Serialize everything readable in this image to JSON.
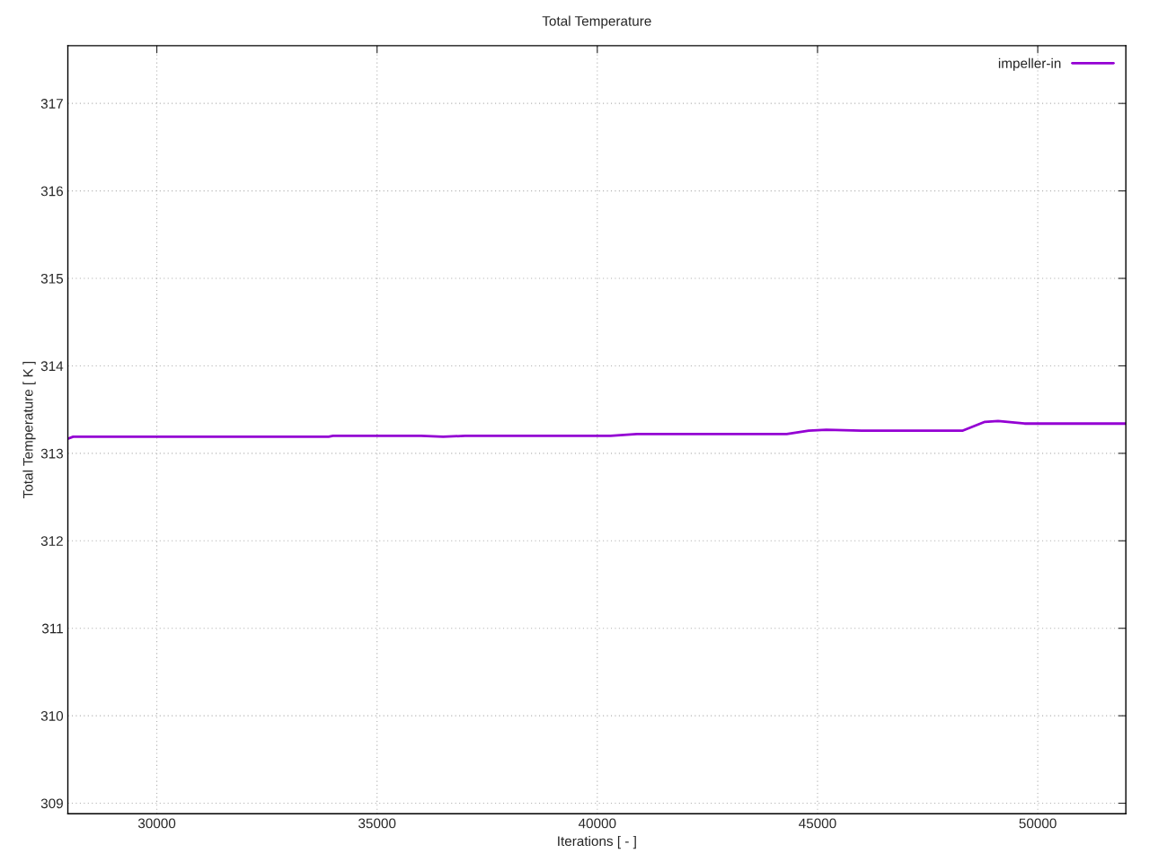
{
  "chart_data": {
    "type": "line",
    "title": "Total Temperature",
    "xlabel": "Iterations [ - ]",
    "ylabel": "Total Temperature [ K ]",
    "series": [
      {
        "name": "impeller-in",
        "color": "#9400d3",
        "x": [
          28000,
          28100,
          28500,
          30000,
          32500,
          33900,
          34000,
          36000,
          36500,
          37000,
          38000,
          40000,
          40300,
          40900,
          41500,
          42000,
          44000,
          44300,
          44800,
          45200,
          46000,
          48000,
          48300,
          48800,
          49100,
          49700,
          50500,
          52000
        ],
        "values": [
          313.17,
          313.19,
          313.19,
          313.19,
          313.19,
          313.19,
          313.2,
          313.2,
          313.19,
          313.2,
          313.2,
          313.2,
          313.2,
          313.22,
          313.22,
          313.22,
          313.22,
          313.22,
          313.26,
          313.27,
          313.26,
          313.26,
          313.26,
          313.36,
          313.37,
          313.34,
          313.34,
          313.34
        ]
      }
    ],
    "xlim": [
      27980,
      52000
    ],
    "ylim": [
      308.88,
      317.66
    ],
    "xticks": [
      30000,
      35000,
      40000,
      45000,
      50000
    ],
    "yticks": [
      309,
      310,
      311,
      312,
      313,
      314,
      315,
      316,
      317
    ],
    "grid": true,
    "legend": "top right"
  }
}
